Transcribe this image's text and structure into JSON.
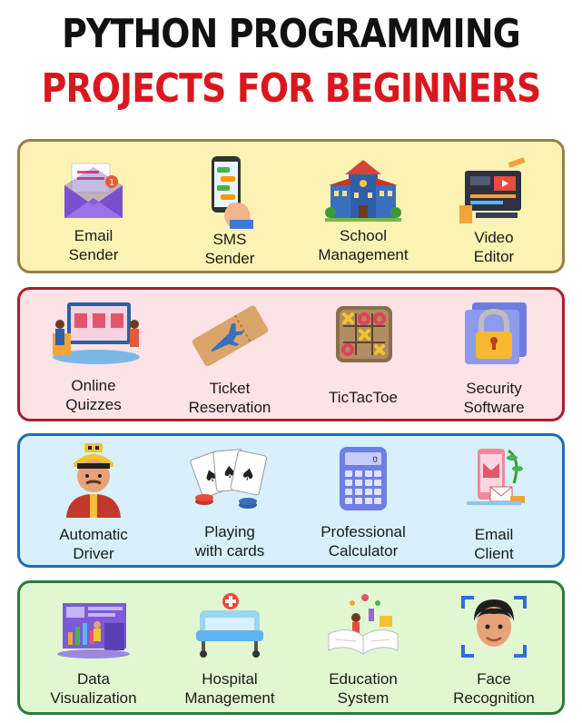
{
  "title_line1": "PYTHON PROGRAMMING",
  "title_line2": "PROJECTS FOR BEGINNERS",
  "colors": {
    "title_line1": "#111111",
    "title_line2": "#d8181e",
    "panel_yellow_bg": "#fbf3b3",
    "panel_yellow_border": "#9a7f45",
    "panel_pink_bg": "#fde2e6",
    "panel_pink_border": "#a8202a",
    "panel_blue_bg": "#d7f0fb",
    "panel_blue_border": "#1f6cb4",
    "panel_green_bg": "#e1f7d2",
    "panel_green_border": "#2a7a3a"
  },
  "projects": [
    {
      "line1": "Email",
      "line2": "Sender",
      "icon": "envelope-icon"
    },
    {
      "line1": "SMS",
      "line2": "Sender",
      "icon": "phone-chat-icon"
    },
    {
      "line1": "School",
      "line2": "Management",
      "icon": "school-building-icon"
    },
    {
      "line1": "Video",
      "line2": "Editor",
      "icon": "video-editor-icon"
    },
    {
      "line1": "Online",
      "line2": "Quizzes",
      "icon": "online-store-icon"
    },
    {
      "line1": "Ticket",
      "line2": "Reservation",
      "icon": "plane-ticket-icon"
    },
    {
      "line1": "TicTacToe",
      "line2": "",
      "icon": "tictactoe-board-icon"
    },
    {
      "line1": "Security",
      "line2": "Software",
      "icon": "padlock-icon"
    },
    {
      "line1": "Automatic",
      "line2": "Driver",
      "icon": "taxi-driver-icon"
    },
    {
      "line1": "Playing",
      "line2": "with cards",
      "icon": "playing-cards-icon"
    },
    {
      "line1": "Professional",
      "line2": "Calculator",
      "icon": "calculator-icon"
    },
    {
      "line1": "Email",
      "line2": "Client",
      "icon": "email-client-phone-icon"
    },
    {
      "line1": "Data",
      "line2": "Visualization",
      "icon": "data-dashboard-icon"
    },
    {
      "line1": "Hospital",
      "line2": "Management",
      "icon": "hospital-bed-icon"
    },
    {
      "line1": "Education",
      "line2": "System",
      "icon": "open-book-icon"
    },
    {
      "line1": "Face",
      "line2": "Recognition",
      "icon": "face-scan-icon"
    }
  ]
}
